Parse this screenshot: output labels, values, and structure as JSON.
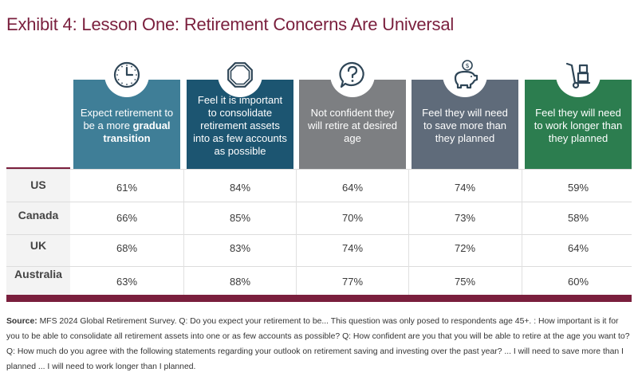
{
  "title": "Exhibit 4: Lesson One: Retirement Concerns Are Universal",
  "chart_data": {
    "type": "table",
    "columns": [
      {
        "text_pre": "Expect retirement to be a more ",
        "text_bold": "gradual transition",
        "color": "#3f7e97",
        "icon": "clock-icon"
      },
      {
        "text_pre": "Feel it is important to consolidate retirement assets into as few accounts as possible",
        "text_bold": "",
        "color": "#1c5571",
        "icon": "octagon-icon"
      },
      {
        "text_pre": "Not confident they will retire at desired age",
        "text_bold": "",
        "color": "#7d7f82",
        "icon": "question-bubble-icon"
      },
      {
        "text_pre": "Feel they will need to save more than they planned",
        "text_bold": "",
        "color": "#5f6b7a",
        "icon": "piggy-bank-icon"
      },
      {
        "text_pre": "Feel they will need to work longer than they planned",
        "text_bold": "",
        "color": "#2c7d4f",
        "icon": "hand-truck-icon"
      }
    ],
    "rows": [
      {
        "label": "US",
        "values": [
          "61%",
          "84%",
          "64%",
          "74%",
          "59%"
        ]
      },
      {
        "label": "Canada",
        "values": [
          "66%",
          "85%",
          "70%",
          "73%",
          "58%"
        ]
      },
      {
        "label": "UK",
        "values": [
          "68%",
          "83%",
          "74%",
          "72%",
          "64%"
        ]
      },
      {
        "label": "Australia",
        "values": [
          "63%",
          "88%",
          "77%",
          "75%",
          "60%"
        ]
      }
    ]
  },
  "source": {
    "label": "Source:",
    "text": "MFS 2024 Global Retirement Survey. Q: Do you expect your retirement to be... This question was only posed to respondents age 45+. : How important is it for you to be able to consolidate all retirement assets into one or as few accounts as possible? Q: How confident are you that you will be able to retire at the age you want to? Q: How much do you agree with the following statements regarding your outlook on retirement saving and investing over the past year? ... I will need to save more than I planned ... I will need to work longer than I planned."
  }
}
